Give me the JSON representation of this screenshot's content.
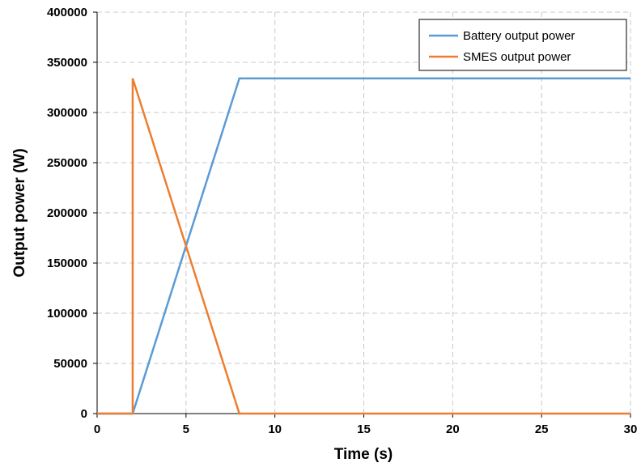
{
  "chart_data": {
    "type": "line",
    "title": "",
    "xlabel": "Time (s)",
    "ylabel": "Output power (W)",
    "xlim": [
      0,
      30
    ],
    "ylim": [
      0,
      400000
    ],
    "xticks": [
      0,
      5,
      10,
      15,
      20,
      25,
      30
    ],
    "yticks": [
      0,
      50000,
      100000,
      150000,
      200000,
      250000,
      300000,
      350000,
      400000
    ],
    "xtick_labels": [
      "0",
      "5",
      "10",
      "15",
      "20",
      "25",
      "30"
    ],
    "ytick_labels": [
      "0",
      "50000",
      "100000",
      "150000",
      "200000",
      "250000",
      "300000",
      "350000",
      "400000"
    ],
    "grid": true,
    "legend_position": "top-right",
    "series": [
      {
        "name": "Battery output power",
        "color": "#5b9bd5",
        "x": [
          0,
          2,
          8,
          30
        ],
        "y": [
          0,
          0,
          334000,
          334000
        ]
      },
      {
        "name": "SMES output power",
        "color": "#ed7d31",
        "x": [
          0,
          2,
          2,
          8,
          30
        ],
        "y": [
          0,
          0,
          334000,
          0,
          0
        ]
      }
    ]
  }
}
